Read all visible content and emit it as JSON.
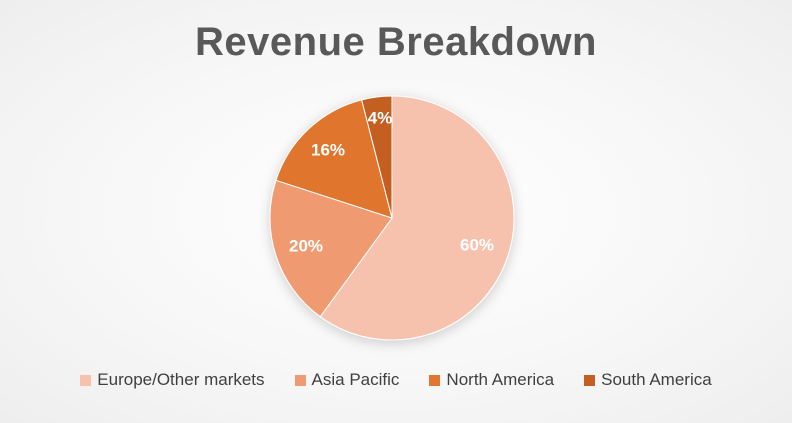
{
  "chart_data": {
    "type": "pie",
    "title": "Revenue Breakdown",
    "categories": [
      "Europe/Other markets",
      "Asia Pacific",
      "North America",
      "South America"
    ],
    "values": [
      60,
      20,
      16,
      4
    ],
    "labels": [
      "60%",
      "20%",
      "16%",
      "4%"
    ],
    "colors": [
      "#F6C2AE",
      "#F09A72",
      "#E0762F",
      "#C45F24"
    ],
    "legend": "bottom",
    "start_angle_deg": 0,
    "direction": "clockwise"
  }
}
